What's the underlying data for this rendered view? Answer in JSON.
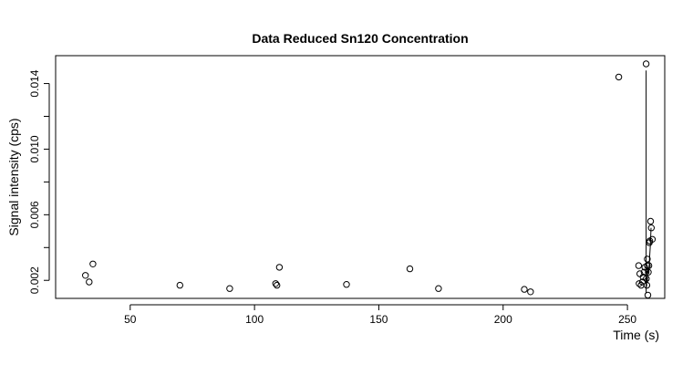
{
  "chart_data": {
    "type": "scatter",
    "title": "Data Reduced Sn120 Concentration",
    "xlabel": "Time (s)",
    "ylabel": "Signal intensity (cps)",
    "xlim": [
      20,
      265
    ],
    "ylim": [
      0.0009,
      0.0157
    ],
    "xticks": [
      50,
      100,
      150,
      200,
      250
    ],
    "xtick_labels": [
      "50",
      "100",
      "150",
      "200",
      "250"
    ],
    "yticks": [
      0.002,
      0.006,
      0.01,
      0.014
    ],
    "ytick_labels": [
      "0.002",
      "0.006",
      "0.010",
      "0.014"
    ],
    "yminor_ticks": [
      0.004,
      0.008,
      0.012
    ],
    "grid": false,
    "points": [
      {
        "x": 32,
        "y": 0.0023
      },
      {
        "x": 33.5,
        "y": 0.0019
      },
      {
        "x": 35,
        "y": 0.003
      },
      {
        "x": 70,
        "y": 0.0017
      },
      {
        "x": 90,
        "y": 0.0015
      },
      {
        "x": 108.5,
        "y": 0.0018
      },
      {
        "x": 109,
        "y": 0.0017
      },
      {
        "x": 110,
        "y": 0.0028
      },
      {
        "x": 137,
        "y": 0.00175
      },
      {
        "x": 162.5,
        "y": 0.0027
      },
      {
        "x": 174,
        "y": 0.0015
      },
      {
        "x": 208.5,
        "y": 0.00145
      },
      {
        "x": 211,
        "y": 0.0013
      },
      {
        "x": 246.5,
        "y": 0.0144
      },
      {
        "x": 254.5,
        "y": 0.0029
      },
      {
        "x": 255,
        "y": 0.0024
      },
      {
        "x": 254.7,
        "y": 0.0018
      },
      {
        "x": 255.5,
        "y": 0.0017
      },
      {
        "x": 256,
        "y": 0.0019
      },
      {
        "x": 256.3,
        "y": 0.0022
      },
      {
        "x": 256.7,
        "y": 0.0025
      },
      {
        "x": 257,
        "y": 0.0028
      },
      {
        "x": 257.5,
        "y": 0.0152
      },
      {
        "x": 257.6,
        "y": 0.0021
      },
      {
        "x": 257.8,
        "y": 0.0017
      },
      {
        "x": 258,
        "y": 0.0029
      },
      {
        "x": 258,
        "y": 0.0033
      },
      {
        "x": 258.2,
        "y": 0.0011
      },
      {
        "x": 258.4,
        "y": 0.0025
      },
      {
        "x": 258.6,
        "y": 0.0029
      },
      {
        "x": 258.8,
        "y": 0.0043
      },
      {
        "x": 259,
        "y": 0.0044
      },
      {
        "x": 259.3,
        "y": 0.0056
      },
      {
        "x": 259.6,
        "y": 0.0052
      },
      {
        "x": 260,
        "y": 0.0045
      }
    ],
    "line_x": [
      257.5,
      257.5,
      257.6,
      257.7,
      257.8,
      258,
      258.3,
      258.6,
      258.9,
      259.2,
      259.5
    ],
    "line_y": [
      0.0148,
      0.0012,
      0.002,
      0.0016,
      0.0022,
      0.0019,
      0.0028,
      0.0024,
      0.0034,
      0.0041,
      0.0052
    ]
  }
}
